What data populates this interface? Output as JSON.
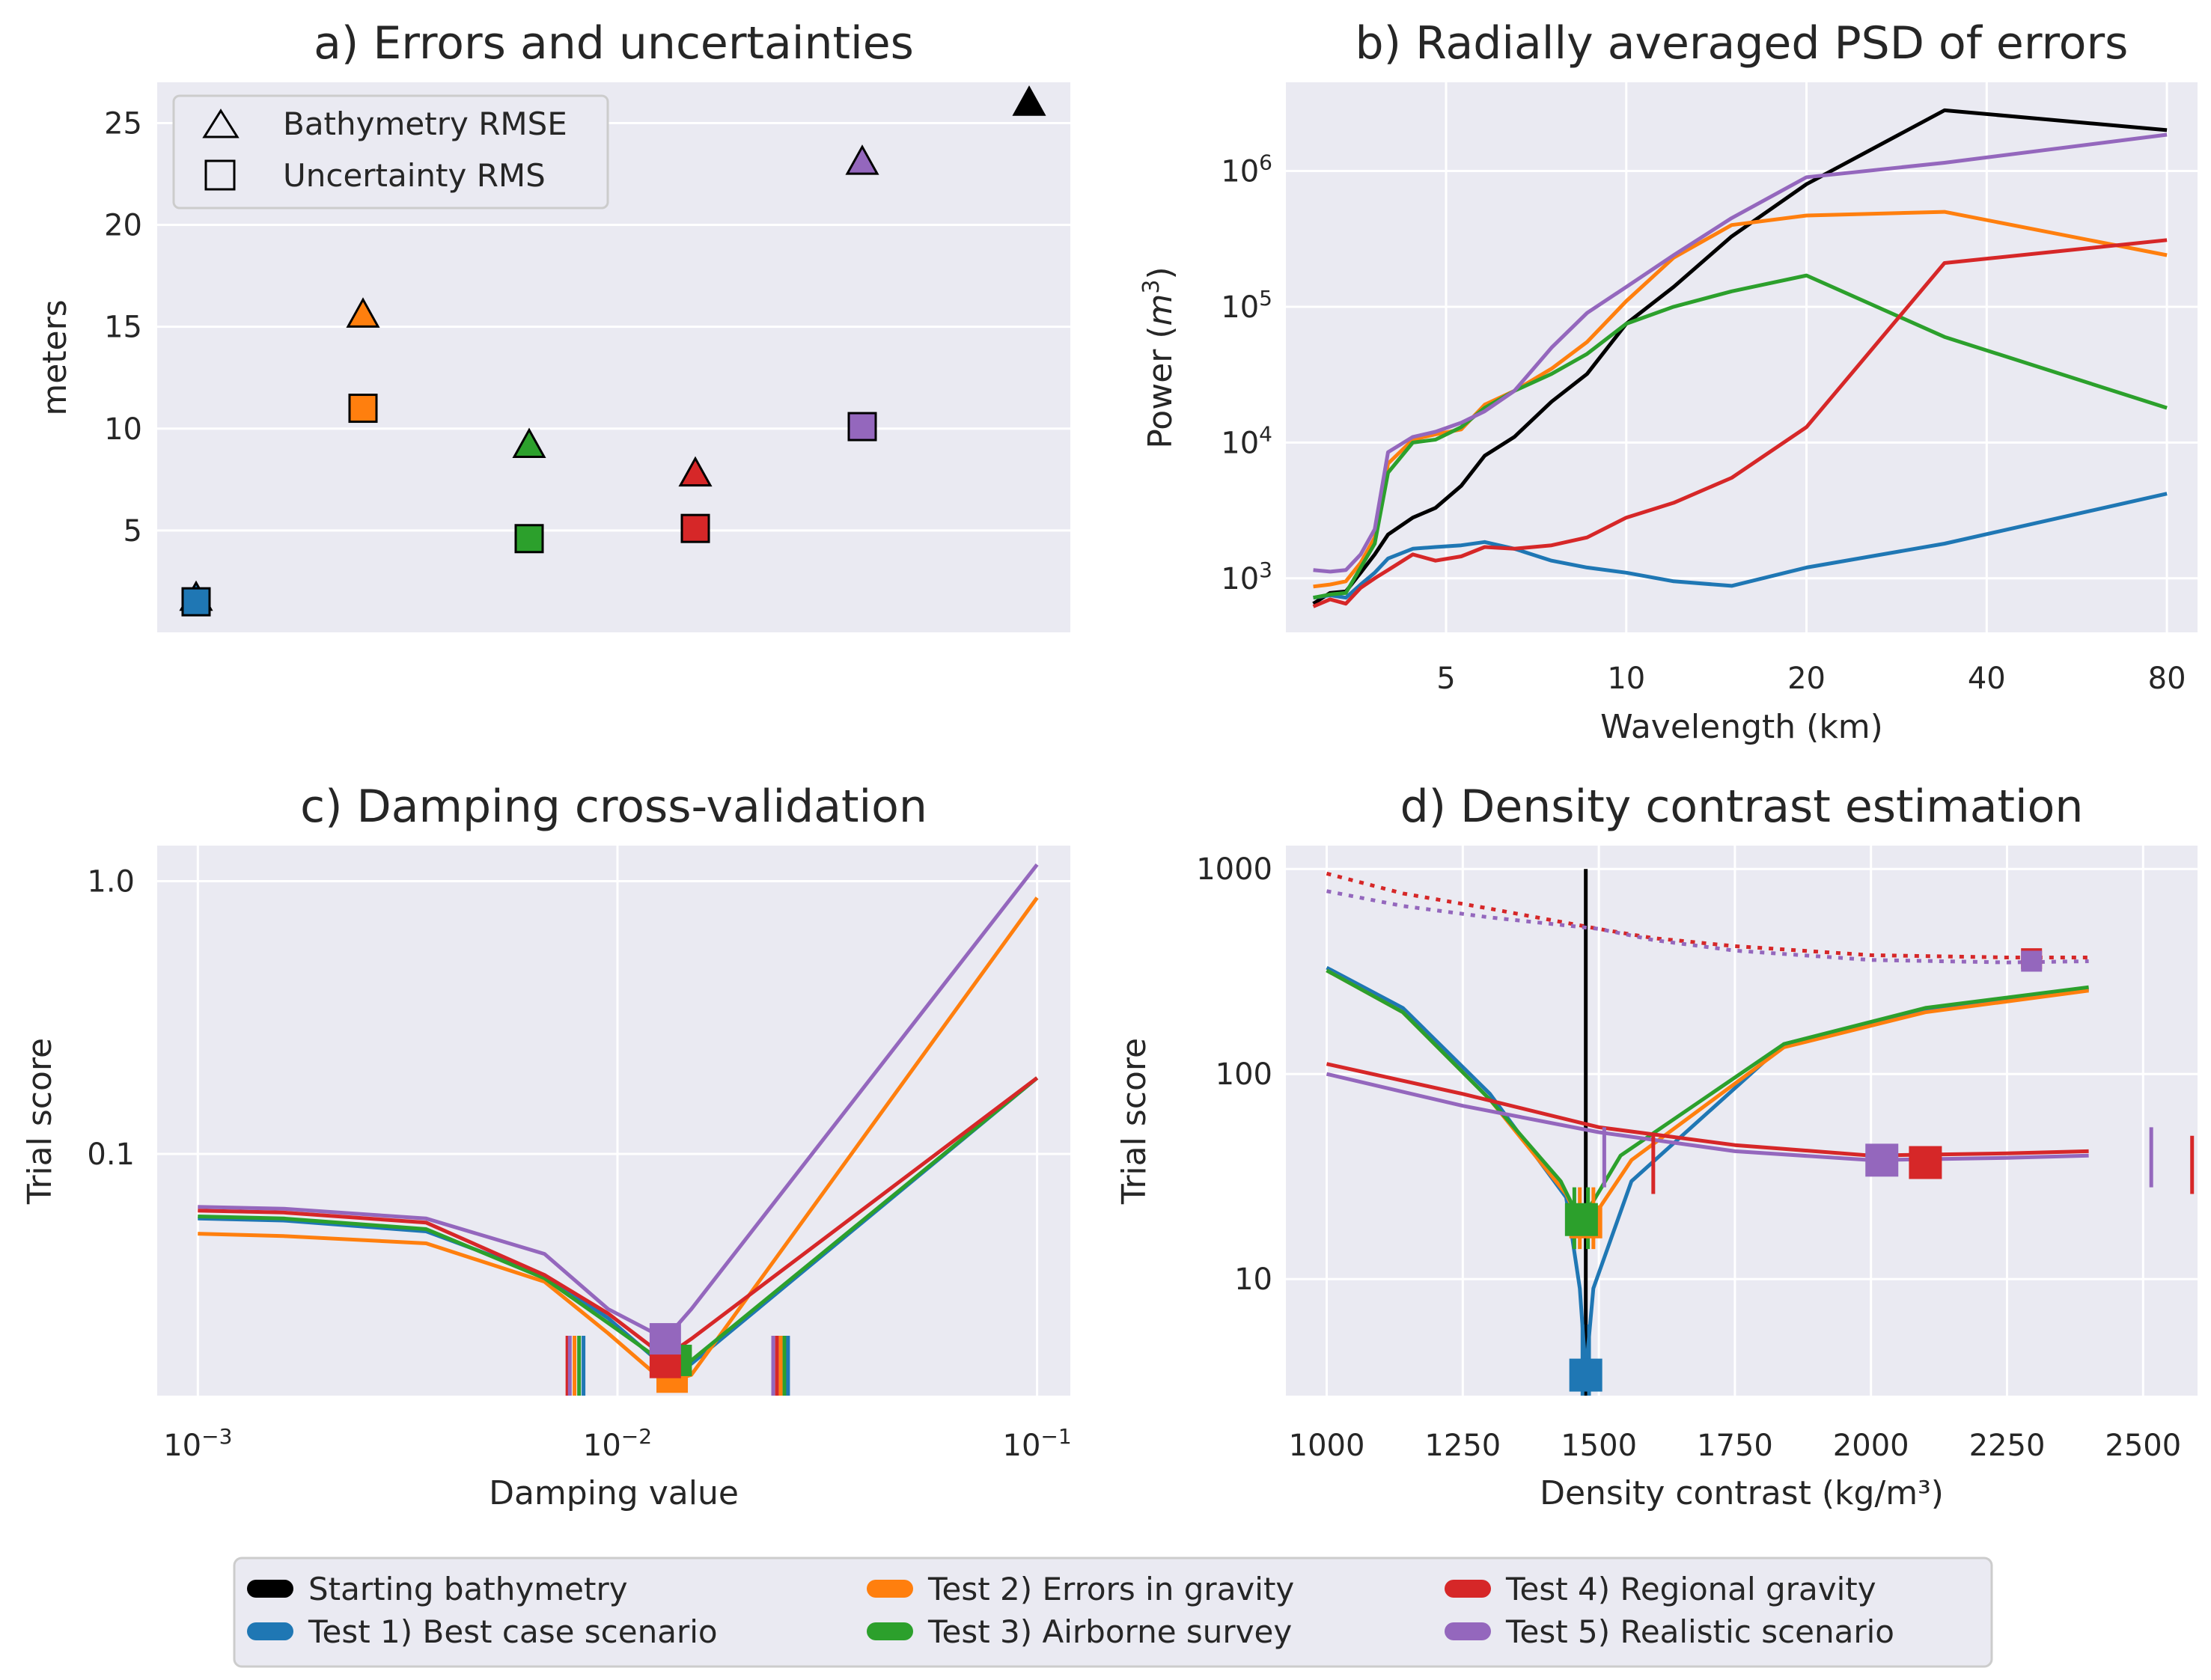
{
  "colors": {
    "background": "#EAEAF2",
    "grid": "#FFFFFF",
    "starting": "#000000",
    "test1": "#1F77B4",
    "test2": "#FF7F0E",
    "test3": "#2CA02C",
    "test4": "#D62728",
    "test5": "#9467BD"
  },
  "legend": {
    "entries": [
      {
        "key": "starting",
        "label": "Starting bathymetry"
      },
      {
        "key": "test1",
        "label": "Test 1) Best case scenario"
      },
      {
        "key": "test2",
        "label": "Test 2) Errors in gravity"
      },
      {
        "key": "test3",
        "label": "Test 3) Airborne survey"
      },
      {
        "key": "test4",
        "label": "Test 4) Regional gravity"
      },
      {
        "key": "test5",
        "label": "Test 5) Realistic scenario"
      }
    ]
  },
  "chart_data": [
    {
      "type": "scatter",
      "title": "a) Errors and uncertainties",
      "xlabel": "",
      "ylabel": "meters",
      "yticks": [
        "5",
        "10",
        "15",
        "20",
        "25"
      ],
      "ylim": [
        0,
        27
      ],
      "legend": {
        "placement": "top-left",
        "entries": [
          "Bathymetry RMSE",
          "Uncertainty RMS"
        ]
      },
      "categories": [
        "test1",
        "test2",
        "test3",
        "test4",
        "test5",
        "starting"
      ],
      "series": [
        {
          "name": "Bathymetry RMSE",
          "marker": "triangle",
          "values": [
            1.7,
            15.6,
            9.2,
            7.8,
            23.1,
            26
          ]
        },
        {
          "name": "Uncertainty RMS",
          "marker": "square",
          "values": [
            1.5,
            11.0,
            4.6,
            5.1,
            10.1,
            null
          ]
        }
      ]
    },
    {
      "type": "line",
      "title": "b) Radially averaged PSD of errors",
      "xlabel": "Wavelength (km)",
      "ylabel": "Power (m3)",
      "xscale": "log",
      "yscale": "log",
      "xticks": [
        "5",
        "10",
        "20",
        "40",
        "80"
      ],
      "yticks": [
        "10^3",
        "10^4",
        "10^5",
        "10^6"
      ],
      "xlim": [
        2.7,
        90
      ],
      "ylim": [
        400,
        4500000
      ],
      "x": [
        3.0,
        3.2,
        3.4,
        3.6,
        3.8,
        4.0,
        4.4,
        4.8,
        5.3,
        5.8,
        6.5,
        7.5,
        8.6,
        10,
        12,
        15,
        20,
        34,
        80
      ],
      "series": [
        {
          "key": "starting",
          "values": [
            650,
            780,
            800,
            1100,
            1500,
            2100,
            2800,
            3300,
            4800,
            8000,
            11000,
            20000,
            32000,
            75000,
            140000,
            330000,
            800000,
            2800000,
            2000000
          ]
        },
        {
          "key": "test1",
          "values": [
            720,
            750,
            720,
            900,
            1100,
            1400,
            1650,
            1700,
            1750,
            1850,
            1650,
            1350,
            1200,
            1100,
            950,
            880,
            1200,
            1800,
            4200
          ]
        },
        {
          "key": "test2",
          "values": [
            870,
            900,
            950,
            1300,
            2000,
            7000,
            10500,
            11500,
            12500,
            19000,
            24000,
            35000,
            55000,
            110000,
            230000,
            400000,
            470000,
            500000,
            240000
          ]
        },
        {
          "key": "test3",
          "values": [
            720,
            760,
            780,
            1200,
            1800,
            6000,
            10000,
            10500,
            13000,
            18000,
            24000,
            32000,
            45000,
            75000,
            100000,
            130000,
            170000,
            60000,
            18000
          ]
        },
        {
          "key": "test4",
          "values": [
            620,
            700,
            650,
            850,
            1000,
            1150,
            1500,
            1350,
            1450,
            1700,
            1650,
            1750,
            2000,
            2800,
            3600,
            5500,
            13000,
            210000,
            310000
          ]
        },
        {
          "key": "test5",
          "values": [
            1150,
            1120,
            1150,
            1500,
            2300,
            8500,
            11000,
            12000,
            14000,
            17000,
            24000,
            50000,
            90000,
            140000,
            240000,
            450000,
            900000,
            1150000,
            1850000
          ]
        }
      ]
    },
    {
      "type": "line",
      "title": "c) Damping cross-validation",
      "xlabel": "Damping value",
      "ylabel": "Trial score",
      "xscale": "log",
      "yscale": "log",
      "xticks": [
        "10^-3",
        "10^-2",
        "10^-1"
      ],
      "yticks": [
        "0.1",
        "1.0"
      ],
      "xlim": [
        0.0008,
        0.12
      ],
      "ylim": [
        0.013,
        1.35
      ],
      "x": [
        0.001,
        0.0016,
        0.0035,
        0.0067,
        0.0095,
        0.013,
        0.015,
        0.1
      ],
      "series": [
        {
          "key": "test1",
          "values": [
            0.058,
            0.057,
            0.052,
            0.036,
            0.025,
            0.0165,
            0.017,
            0.19
          ]
        },
        {
          "key": "test2",
          "values": [
            0.051,
            0.05,
            0.047,
            0.034,
            0.022,
            0.0145,
            0.0155,
            0.87
          ]
        },
        {
          "key": "test3",
          "values": [
            0.059,
            0.058,
            0.053,
            0.035,
            0.024,
            0.017,
            0.0175,
            0.19
          ]
        },
        {
          "key": "test4",
          "values": [
            0.062,
            0.061,
            0.056,
            0.036,
            0.026,
            0.018,
            0.021,
            0.19
          ]
        },
        {
          "key": "test5",
          "values": [
            0.064,
            0.063,
            0.058,
            0.043,
            0.027,
            0.021,
            0.027,
            1.15
          ]
        }
      ],
      "best": [
        {
          "key": "test1",
          "x": 0.0135,
          "y": 0.017
        },
        {
          "key": "test2",
          "x": 0.0135,
          "y": 0.0152
        },
        {
          "key": "test3",
          "x": 0.0138,
          "y": 0.0175
        },
        {
          "key": "test4",
          "x": 0.013,
          "y": 0.0172
        },
        {
          "key": "test5",
          "x": 0.013,
          "y": 0.021
        }
      ],
      "bounds": [
        {
          "key": "test4",
          "x": [
            0.0076,
            0.024
          ]
        },
        {
          "key": "test5",
          "x": [
            0.0077,
            0.0235
          ]
        },
        {
          "key": "test2",
          "x": [
            0.0079,
            0.0245
          ]
        },
        {
          "key": "test3",
          "x": [
            0.0081,
            0.025
          ]
        },
        {
          "key": "test1",
          "x": [
            0.0083,
            0.0255
          ]
        }
      ]
    },
    {
      "type": "line",
      "title": "d) Density contrast estimation",
      "xlabel": "Density contrast (kg/m³)",
      "ylabel": "Trial score",
      "yscale": "log",
      "xticks": [
        "1000",
        "1250",
        "1500",
        "1750",
        "2000",
        "2250",
        "2500"
      ],
      "yticks": [
        "10",
        "100",
        "1000"
      ],
      "xlim": [
        925,
        2600
      ],
      "ylim": [
        2.7,
        1300
      ],
      "starting_density": 1476,
      "series": [
        {
          "key": "test1",
          "x": [
            1000,
            1140,
            1300,
            1440,
            1465,
            1476,
            1490,
            1560,
            1840,
            2100,
            2400
          ],
          "values": [
            330,
            210,
            80,
            25,
            9,
            3.5,
            9,
            30,
            140,
            205,
            260
          ]
        },
        {
          "key": "test2",
          "x": [
            1000,
            1140,
            1300,
            1440,
            1460,
            1476,
            1500,
            1560,
            1840,
            2100,
            2400
          ],
          "values": [
            320,
            200,
            75,
            26,
            20,
            18,
            22,
            38,
            135,
            200,
            255
          ]
        },
        {
          "key": "test3",
          "x": [
            1000,
            1140,
            1300,
            1430,
            1455,
            1470,
            1490,
            1540,
            1840,
            2100,
            2400
          ],
          "values": [
            320,
            200,
            75,
            30,
            22,
            20,
            24,
            40,
            140,
            210,
            265
          ]
        },
        {
          "key": "test4",
          "x": [
            1000,
            1250,
            1500,
            1750,
            2000,
            2250,
            2400
          ],
          "values": [
            112,
            80,
            55,
            45,
            40,
            41,
            42
          ]
        },
        {
          "key": "test5",
          "x": [
            1000,
            1250,
            1500,
            1750,
            2000,
            2250,
            2400
          ],
          "values": [
            100,
            70,
            52,
            42,
            38,
            39,
            40
          ]
        }
      ],
      "dotted_series": [
        {
          "key": "test4",
          "x": [
            1000,
            1140,
            1300,
            1500,
            1600,
            1750,
            2000,
            2250,
            2400
          ],
          "values": [
            950,
            760,
            640,
            510,
            460,
            420,
            380,
            370,
            370
          ]
        },
        {
          "key": "test5",
          "x": [
            1000,
            1140,
            1300,
            1500,
            1600,
            1750,
            2000,
            2250,
            2400
          ],
          "values": [
            780,
            660,
            580,
            510,
            450,
            400,
            360,
            350,
            355
          ]
        }
      ],
      "best": [
        {
          "key": "test1",
          "x": 1476,
          "y": 3.4
        },
        {
          "key": "test2",
          "x": 1476,
          "y": 19
        },
        {
          "key": "test3",
          "x": 1468,
          "y": 19.5
        },
        {
          "key": "test4",
          "x": 2100,
          "y": 37
        },
        {
          "key": "test5",
          "x": 2020,
          "y": 38
        }
      ],
      "bests_small": [
        {
          "key": "test4",
          "x": 2295,
          "y": 365
        },
        {
          "key": "test5",
          "x": 2295,
          "y": 355
        }
      ],
      "bounds": [
        {
          "key": "test4",
          "x": [
            1600,
            2590
          ]
        },
        {
          "key": "test5",
          "x": [
            1510,
            2515
          ]
        },
        {
          "key": "test2",
          "x": [
            1465,
            1490
          ]
        },
        {
          "key": "test3",
          "x": [
            1455,
            1480
          ]
        },
        {
          "key": "test1",
          "x": [
            1470,
            1482
          ]
        }
      ]
    }
  ]
}
